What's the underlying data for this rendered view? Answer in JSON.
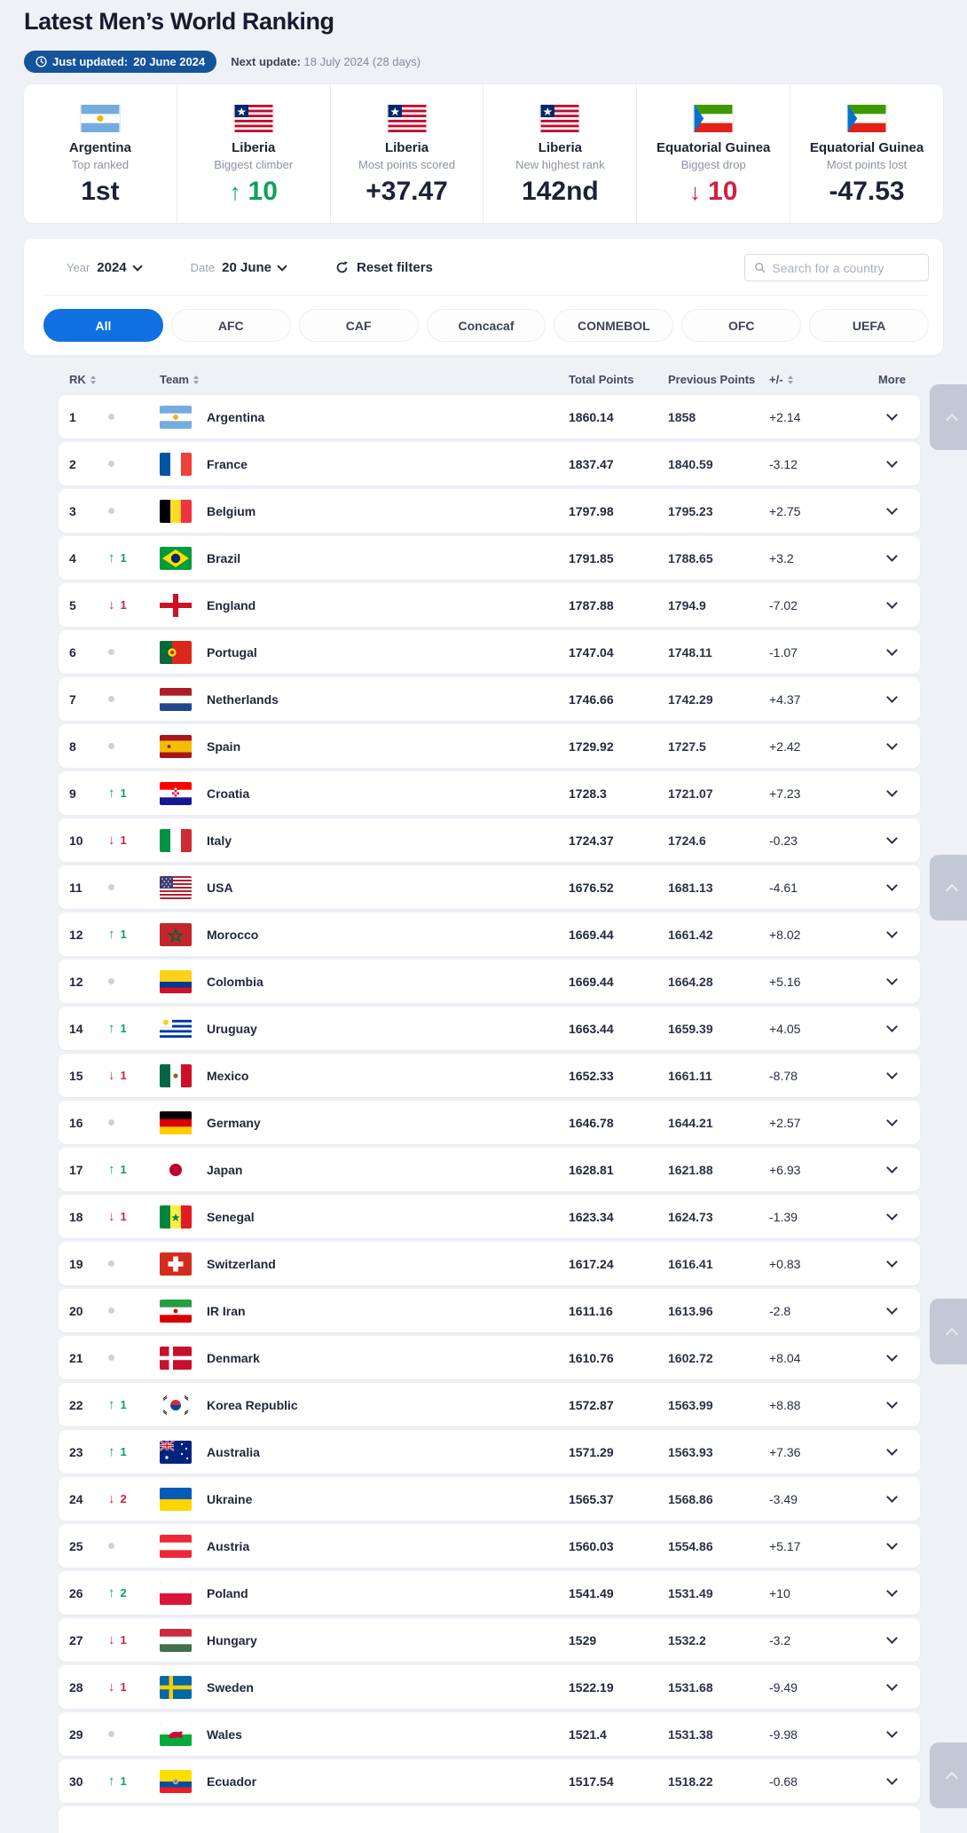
{
  "page": {
    "title": "Latest Men’s World Ranking"
  },
  "update_bar": {
    "just_updated_label": "Just updated:",
    "just_updated_date": "20 June 2024",
    "next_update_label": "Next update:",
    "next_update_value": "18 July 2024 (28 days)"
  },
  "stats": [
    {
      "flag": "argentina",
      "country": "Argentina",
      "label": "Top ranked",
      "value": "1st",
      "direction": "none"
    },
    {
      "flag": "liberia",
      "country": "Liberia",
      "label": "Biggest climber",
      "value": "10",
      "direction": "up"
    },
    {
      "flag": "liberia",
      "country": "Liberia",
      "label": "Most points scored",
      "value": "+37.47",
      "direction": "none"
    },
    {
      "flag": "liberia",
      "country": "Liberia",
      "label": "New highest rank",
      "value": "142nd",
      "direction": "none"
    },
    {
      "flag": "equatorial-guinea",
      "country": "Equatorial Guinea",
      "label": "Biggest drop",
      "value": "10",
      "direction": "down"
    },
    {
      "flag": "equatorial-guinea",
      "country": "Equatorial Guinea",
      "label": "Most points lost",
      "value": "-47.53",
      "direction": "none"
    }
  ],
  "filters": {
    "year_label": "Year",
    "year_value": "2024",
    "date_label": "Date",
    "date_value": "20 June",
    "reset_label": "Reset filters",
    "search_placeholder": "Search for a country"
  },
  "tabs": [
    {
      "label": "All",
      "active": true
    },
    {
      "label": "AFC",
      "active": false
    },
    {
      "label": "CAF",
      "active": false
    },
    {
      "label": "Concacaf",
      "active": false
    },
    {
      "label": "CONMEBOL",
      "active": false
    },
    {
      "label": "OFC",
      "active": false
    },
    {
      "label": "UEFA",
      "active": false
    }
  ],
  "table": {
    "headers": {
      "rank": "RK",
      "team": "Team",
      "total": "Total Points",
      "previous": "Previous Points",
      "delta": "+/-",
      "more": "More"
    },
    "rows": [
      {
        "rank": "1",
        "movement": "none",
        "moved": "",
        "team": "Argentina",
        "flag": "argentina",
        "total": "1860.14",
        "previous": "1858",
        "delta": "+2.14"
      },
      {
        "rank": "2",
        "movement": "none",
        "moved": "",
        "team": "France",
        "flag": "france",
        "total": "1837.47",
        "previous": "1840.59",
        "delta": "-3.12"
      },
      {
        "rank": "3",
        "movement": "none",
        "moved": "",
        "team": "Belgium",
        "flag": "belgium",
        "total": "1797.98",
        "previous": "1795.23",
        "delta": "+2.75"
      },
      {
        "rank": "4",
        "movement": "up",
        "moved": "1",
        "team": "Brazil",
        "flag": "brazil",
        "total": "1791.85",
        "previous": "1788.65",
        "delta": "+3.2"
      },
      {
        "rank": "5",
        "movement": "down",
        "moved": "1",
        "team": "England",
        "flag": "england",
        "total": "1787.88",
        "previous": "1794.9",
        "delta": "-7.02"
      },
      {
        "rank": "6",
        "movement": "none",
        "moved": "",
        "team": "Portugal",
        "flag": "portugal",
        "total": "1747.04",
        "previous": "1748.11",
        "delta": "-1.07"
      },
      {
        "rank": "7",
        "movement": "none",
        "moved": "",
        "team": "Netherlands",
        "flag": "netherlands",
        "total": "1746.66",
        "previous": "1742.29",
        "delta": "+4.37"
      },
      {
        "rank": "8",
        "movement": "none",
        "moved": "",
        "team": "Spain",
        "flag": "spain",
        "total": "1729.92",
        "previous": "1727.5",
        "delta": "+2.42"
      },
      {
        "rank": "9",
        "movement": "up",
        "moved": "1",
        "team": "Croatia",
        "flag": "croatia",
        "total": "1728.3",
        "previous": "1721.07",
        "delta": "+7.23"
      },
      {
        "rank": "10",
        "movement": "down",
        "moved": "1",
        "team": "Italy",
        "flag": "italy",
        "total": "1724.37",
        "previous": "1724.6",
        "delta": "-0.23"
      },
      {
        "rank": "11",
        "movement": "none",
        "moved": "",
        "team": "USA",
        "flag": "usa",
        "total": "1676.52",
        "previous": "1681.13",
        "delta": "-4.61"
      },
      {
        "rank": "12",
        "movement": "up",
        "moved": "1",
        "team": "Morocco",
        "flag": "morocco",
        "total": "1669.44",
        "previous": "1661.42",
        "delta": "+8.02"
      },
      {
        "rank": "12",
        "movement": "none",
        "moved": "",
        "team": "Colombia",
        "flag": "colombia",
        "total": "1669.44",
        "previous": "1664.28",
        "delta": "+5.16"
      },
      {
        "rank": "14",
        "movement": "up",
        "moved": "1",
        "team": "Uruguay",
        "flag": "uruguay",
        "total": "1663.44",
        "previous": "1659.39",
        "delta": "+4.05"
      },
      {
        "rank": "15",
        "movement": "down",
        "moved": "1",
        "team": "Mexico",
        "flag": "mexico",
        "total": "1652.33",
        "previous": "1661.11",
        "delta": "-8.78"
      },
      {
        "rank": "16",
        "movement": "none",
        "moved": "",
        "team": "Germany",
        "flag": "germany",
        "total": "1646.78",
        "previous": "1644.21",
        "delta": "+2.57"
      },
      {
        "rank": "17",
        "movement": "up",
        "moved": "1",
        "team": "Japan",
        "flag": "japan",
        "total": "1628.81",
        "previous": "1621.88",
        "delta": "+6.93"
      },
      {
        "rank": "18",
        "movement": "down",
        "moved": "1",
        "team": "Senegal",
        "flag": "senegal",
        "total": "1623.34",
        "previous": "1624.73",
        "delta": "-1.39"
      },
      {
        "rank": "19",
        "movement": "none",
        "moved": "",
        "team": "Switzerland",
        "flag": "switzerland",
        "total": "1617.24",
        "previous": "1616.41",
        "delta": "+0.83"
      },
      {
        "rank": "20",
        "movement": "none",
        "moved": "",
        "team": "IR Iran",
        "flag": "iran",
        "total": "1611.16",
        "previous": "1613.96",
        "delta": "-2.8"
      },
      {
        "rank": "21",
        "movement": "none",
        "moved": "",
        "team": "Denmark",
        "flag": "denmark",
        "total": "1610.76",
        "previous": "1602.72",
        "delta": "+8.04"
      },
      {
        "rank": "22",
        "movement": "up",
        "moved": "1",
        "team": "Korea Republic",
        "flag": "korea",
        "total": "1572.87",
        "previous": "1563.99",
        "delta": "+8.88"
      },
      {
        "rank": "23",
        "movement": "up",
        "moved": "1",
        "team": "Australia",
        "flag": "australia",
        "total": "1571.29",
        "previous": "1563.93",
        "delta": "+7.36"
      },
      {
        "rank": "24",
        "movement": "down",
        "moved": "2",
        "team": "Ukraine",
        "flag": "ukraine",
        "total": "1565.37",
        "previous": "1568.86",
        "delta": "-3.49"
      },
      {
        "rank": "25",
        "movement": "none",
        "moved": "",
        "team": "Austria",
        "flag": "austria",
        "total": "1560.03",
        "previous": "1554.86",
        "delta": "+5.17"
      },
      {
        "rank": "26",
        "movement": "up",
        "moved": "2",
        "team": "Poland",
        "flag": "poland",
        "total": "1541.49",
        "previous": "1531.49",
        "delta": "+10"
      },
      {
        "rank": "27",
        "movement": "down",
        "moved": "1",
        "team": "Hungary",
        "flag": "hungary",
        "total": "1529",
        "previous": "1532.2",
        "delta": "-3.2"
      },
      {
        "rank": "28",
        "movement": "down",
        "moved": "1",
        "team": "Sweden",
        "flag": "sweden",
        "total": "1522.19",
        "previous": "1531.68",
        "delta": "-9.49"
      },
      {
        "rank": "29",
        "movement": "none",
        "moved": "",
        "team": "Wales",
        "flag": "wales",
        "total": "1521.4",
        "previous": "1531.38",
        "delta": "-9.98"
      },
      {
        "rank": "30",
        "movement": "up",
        "moved": "1",
        "team": "Ecuador",
        "flag": "ecuador",
        "total": "1517.54",
        "previous": "1518.22",
        "delta": "-0.68"
      }
    ]
  },
  "colors": {
    "background": "#eef1f6",
    "accent_blue": "#1070e0",
    "badge_blue": "#15539b",
    "positive_green": "#0ca15c",
    "negative_red": "#d0223f",
    "text_dark": "#1c2236",
    "text_gray": "#8a93a4"
  }
}
